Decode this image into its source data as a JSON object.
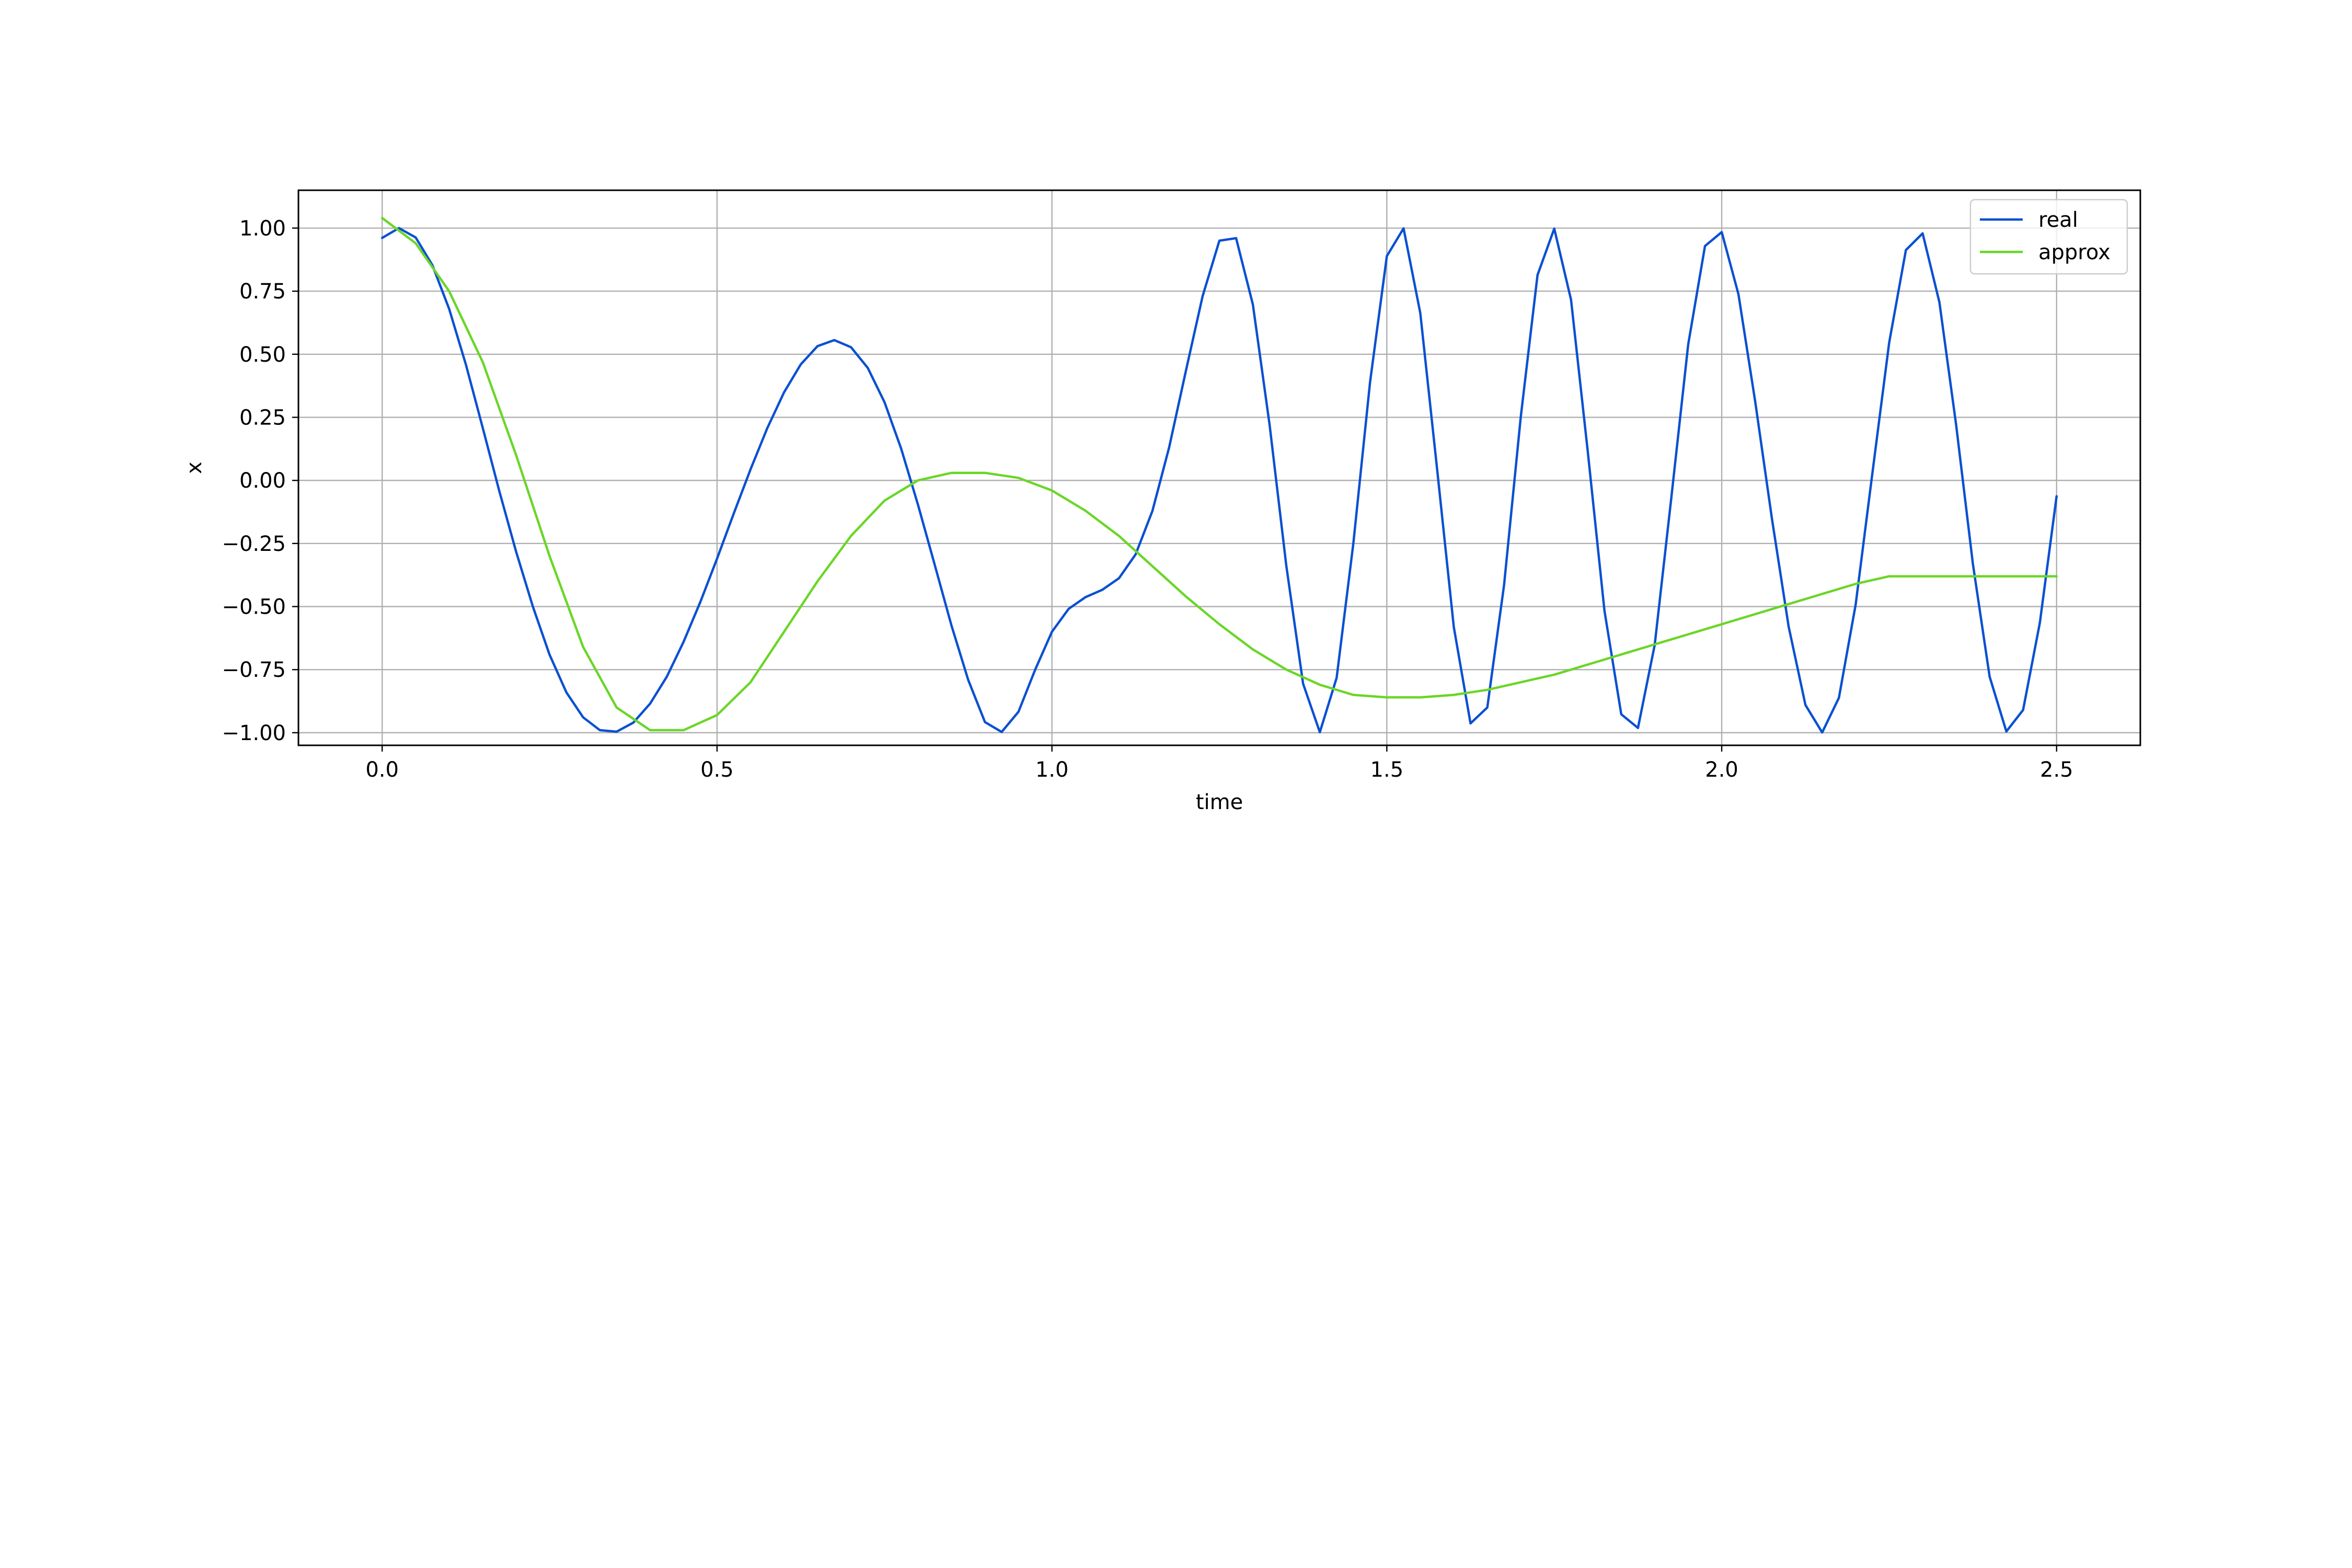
{
  "chart_data": {
    "type": "line",
    "title": "",
    "xlabel": "time",
    "ylabel": "x",
    "xlim": [
      -0.125,
      2.625
    ],
    "ylim": [
      -1.05,
      1.15
    ],
    "xticks": [
      0.0,
      0.5,
      1.0,
      1.5,
      2.0,
      2.5
    ],
    "xtick_labels": [
      "0.0",
      "0.5",
      "1.0",
      "1.5",
      "2.0",
      "2.5"
    ],
    "yticks": [
      1.0,
      0.75,
      0.5,
      0.25,
      0.0,
      -0.25,
      -0.5,
      -0.75,
      -1.0
    ],
    "ytick_labels": [
      "1.00",
      "0.75",
      "0.50",
      "0.25",
      "0.00",
      "−0.25",
      "−0.50",
      "−0.75",
      "−1.00"
    ],
    "grid": true,
    "legend_position": "top-right",
    "series": [
      {
        "name": "real",
        "color": "#0a50d2",
        "x": [
          0.0,
          0.025,
          0.05,
          0.075,
          0.1,
          0.125,
          0.15,
          0.175,
          0.2,
          0.225,
          0.25,
          0.275,
          0.3,
          0.325,
          0.35,
          0.375,
          0.4,
          0.425,
          0.45,
          0.475,
          0.5,
          0.525,
          0.55,
          0.575,
          0.6,
          0.625,
          0.65,
          0.675,
          0.7,
          0.725,
          0.75,
          0.775,
          0.8,
          0.825,
          0.85,
          0.875,
          0.9,
          0.925,
          0.95,
          0.975,
          1.0,
          1.025,
          1.05,
          1.075,
          1.1,
          1.125,
          1.15,
          1.175,
          1.2,
          1.225,
          1.25,
          1.275,
          1.3,
          1.325,
          1.35,
          1.375,
          1.4,
          1.425,
          1.45,
          1.475,
          1.5,
          1.525,
          1.55,
          1.575,
          1.6,
          1.625,
          1.65,
          1.675,
          1.7,
          1.725,
          1.75,
          1.775,
          1.8,
          1.825,
          1.85,
          1.875,
          1.9,
          1.925,
          1.95,
          1.975,
          2.0,
          2.025,
          2.05,
          2.075,
          2.1,
          2.125,
          2.15,
          2.175,
          2.2,
          2.225,
          2.25,
          2.275,
          2.3,
          2.325,
          2.35,
          2.375,
          2.4,
          2.425,
          2.45,
          2.475,
          2.5
        ],
        "y": [
          0.961,
          1.0,
          0.963,
          0.853,
          0.68,
          0.459,
          0.21,
          -0.043,
          -0.283,
          -0.5,
          -0.691,
          -0.84,
          -0.939,
          -0.99,
          -0.996,
          -0.96,
          -0.885,
          -0.778,
          -0.64,
          -0.482,
          -0.31,
          -0.131,
          0.044,
          0.207,
          0.349,
          0.46,
          0.532,
          0.556,
          0.528,
          0.446,
          0.31,
          0.125,
          -0.096,
          -0.335,
          -0.575,
          -0.791,
          -0.958,
          -0.997,
          -0.917,
          -0.75,
          -0.6,
          -0.509,
          -0.463,
          -0.434,
          -0.388,
          -0.293,
          -0.121,
          0.131,
          0.434,
          0.731,
          0.95,
          0.96,
          0.697,
          0.22,
          -0.339,
          -0.806,
          -0.998,
          -0.783,
          -0.25,
          0.39,
          0.889,
          0.999,
          0.663,
          0.046,
          -0.581,
          -0.963,
          -0.9,
          -0.416,
          0.253,
          0.814,
          0.998,
          0.716,
          0.115,
          -0.517,
          -0.927,
          -0.981,
          -0.652,
          -0.063,
          0.539,
          0.929,
          0.984,
          0.738,
          0.312,
          -0.152,
          -0.58,
          -0.89,
          -0.999,
          -0.862,
          -0.492,
          0.029,
          0.546,
          0.913,
          0.979,
          0.706,
          0.22,
          -0.33,
          -0.778,
          -0.995,
          -0.91,
          -0.564,
          -0.063
        ]
      },
      {
        "name": "approx",
        "color": "#6ad628",
        "x": [
          0.0,
          0.05,
          0.1,
          0.15,
          0.2,
          0.25,
          0.3,
          0.35,
          0.4,
          0.45,
          0.5,
          0.55,
          0.6,
          0.65,
          0.7,
          0.75,
          0.8,
          0.85,
          0.9,
          0.95,
          1.0,
          1.05,
          1.1,
          1.15,
          1.2,
          1.25,
          1.3,
          1.35,
          1.4,
          1.45,
          1.5,
          1.55,
          1.6,
          1.65,
          1.7,
          1.75,
          1.8,
          1.85,
          1.9,
          1.95,
          2.0,
          2.05,
          2.1,
          2.15,
          2.2,
          2.25,
          2.3,
          2.35,
          2.4,
          2.45,
          2.5
        ],
        "y": [
          1.04,
          0.94,
          0.75,
          0.47,
          0.1,
          -0.3,
          -0.66,
          -0.9,
          -0.99,
          -0.99,
          -0.93,
          -0.8,
          -0.6,
          -0.4,
          -0.22,
          -0.08,
          0.0,
          0.03,
          0.03,
          0.01,
          -0.04,
          -0.12,
          -0.22,
          -0.34,
          -0.46,
          -0.57,
          -0.67,
          -0.75,
          -0.81,
          -0.85,
          -0.86,
          -0.86,
          -0.85,
          -0.83,
          -0.8,
          -0.77,
          -0.73,
          -0.69,
          -0.65,
          -0.61,
          -0.57,
          -0.53,
          -0.49,
          -0.45,
          -0.41,
          -0.38,
          -0.38,
          -0.38,
          -0.38,
          -0.38,
          -0.38
        ]
      }
    ]
  }
}
